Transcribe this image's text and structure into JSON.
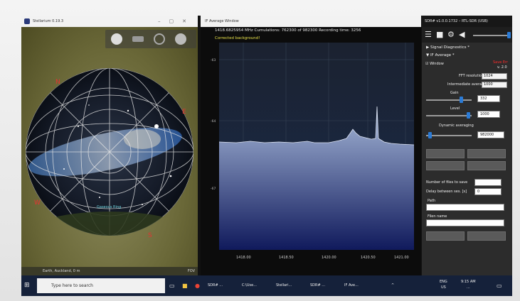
{
  "stellarium": {
    "title": "Stellarium 0.19.3",
    "location": "Earth, Auckland, 0 m",
    "fov_label": "FOV",
    "constellation_label": "Gaseous Ring",
    "cardinal": {
      "north": "N",
      "south": "S",
      "east": "E",
      "west": "W"
    },
    "toolbar_icons": [
      "sphere-icon",
      "landscape-icon",
      "grid-icon",
      "globe-icon"
    ]
  },
  "if_window": {
    "title": "IF Average Window",
    "info": "1418.6825954 MHz    Cumulations: 762300 of 982300    Recording time: 3256",
    "corrected_label": "Corrected background!",
    "y_ticks": [
      "-63",
      "-64",
      "-67"
    ],
    "x_ticks": [
      "1418.00",
      "1418.50",
      "1420.00",
      "1420.50",
      "1421.00"
    ]
  },
  "sdr": {
    "title": "SDR# v1.0.0.1732 – RTL-SDR (USB)",
    "signal_diagnostics": "Signal Diagnostics *",
    "if_average": "IF Average *",
    "window_label": "Window",
    "status_red": "Save Err",
    "version_hint": "v. 2.0",
    "fft_resolution_label": "FFT resolution",
    "fft_resolution_value": "1024",
    "intermediate_average_label": "Intermediate average",
    "intermediate_average_value": "1000",
    "gain_label": "Gain",
    "gain_value": "332",
    "gain_level": 0.78,
    "level_label": "Level",
    "level_value": "1000",
    "level_level": 0.95,
    "dynamic_averaging_label": "Dynamic averaging",
    "dynamic_averaging_value": "982000",
    "dynamic_level": 0.05,
    "files_to_save_label": "Number of files to save",
    "delay_label": "Delay between ses. [s]",
    "delay_value": "0",
    "path_label": "Path",
    "filename_label": "Filen name"
  },
  "taskbar": {
    "search_placeholder": "Type here to search",
    "apps": [
      "SDR# ...",
      "C:\\Use...",
      "Stellari...",
      "SDR# ...",
      "IF Ave..."
    ],
    "lang": "ENG",
    "region": "US",
    "time": "9:15 AM",
    "date": "..."
  },
  "colors": {
    "plot_top": "#a7b9d9",
    "plot_bottom": "#101a5c",
    "accent_blue": "#2b7bd6",
    "status_red": "#ff2a2a"
  }
}
